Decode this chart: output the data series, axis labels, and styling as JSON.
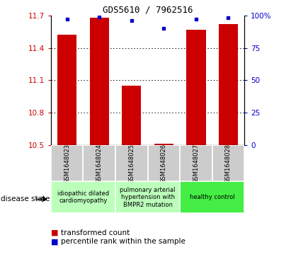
{
  "title": "GDS5610 / 7962516",
  "samples": [
    "GSM1648023",
    "GSM1648024",
    "GSM1648025",
    "GSM1648026",
    "GSM1648027",
    "GSM1648028"
  ],
  "transformed_counts": [
    11.52,
    11.68,
    11.05,
    10.515,
    11.57,
    11.62
  ],
  "percentile_ranks": [
    97,
    99,
    96,
    90,
    97,
    98
  ],
  "ylim_left": [
    10.5,
    11.7
  ],
  "ylim_right": [
    0,
    100
  ],
  "left_ticks": [
    10.5,
    10.8,
    11.1,
    11.4,
    11.7
  ],
  "right_ticks": [
    0,
    25,
    50,
    75,
    100
  ],
  "bar_color": "#cc0000",
  "marker_color": "#0000cc",
  "label_box_color": "#cccccc",
  "group_ranges": [
    [
      0,
      1
    ],
    [
      2,
      3
    ],
    [
      4,
      5
    ]
  ],
  "group_labels": [
    "idiopathic dilated\ncardiomyopathy",
    "pulmonary arterial\nhypertension with\nBMPR2 mutation",
    "healthy control"
  ],
  "group_colors": [
    "#bbffbb",
    "#bbffbb",
    "#44ee44"
  ],
  "legend_red_label": "transformed count",
  "legend_blue_label": "percentile rank within the sample",
  "disease_state_label": "disease state"
}
